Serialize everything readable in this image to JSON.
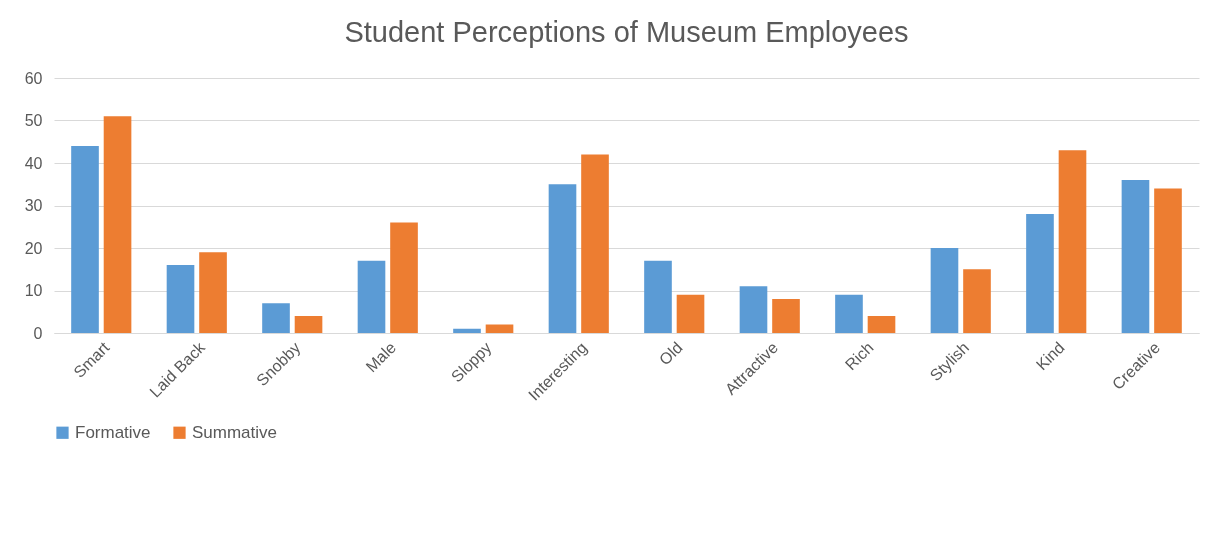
{
  "chart_data": {
    "type": "bar",
    "title": "Student Perceptions of Museum Employees",
    "categories": [
      "Smart",
      "Laid Back",
      "Snobby",
      "Male",
      "Sloppy",
      "Interesting",
      "Old",
      "Attractive",
      "Rich",
      "Stylish",
      "Kind",
      "Creative"
    ],
    "series": [
      {
        "name": "Formative",
        "color": "#5b9bd5",
        "values": [
          44,
          16,
          7,
          17,
          1,
          35,
          17,
          11,
          9,
          20,
          28,
          36
        ]
      },
      {
        "name": "Summative",
        "color": "#ed7d31",
        "values": [
          51,
          19,
          4,
          26,
          2,
          42,
          9,
          8,
          4,
          15,
          43,
          34
        ]
      }
    ],
    "ylim": [
      0,
      60
    ],
    "yticks": [
      0,
      10,
      20,
      30,
      40,
      50,
      60
    ],
    "grid": "y",
    "legend": "bottom"
  }
}
